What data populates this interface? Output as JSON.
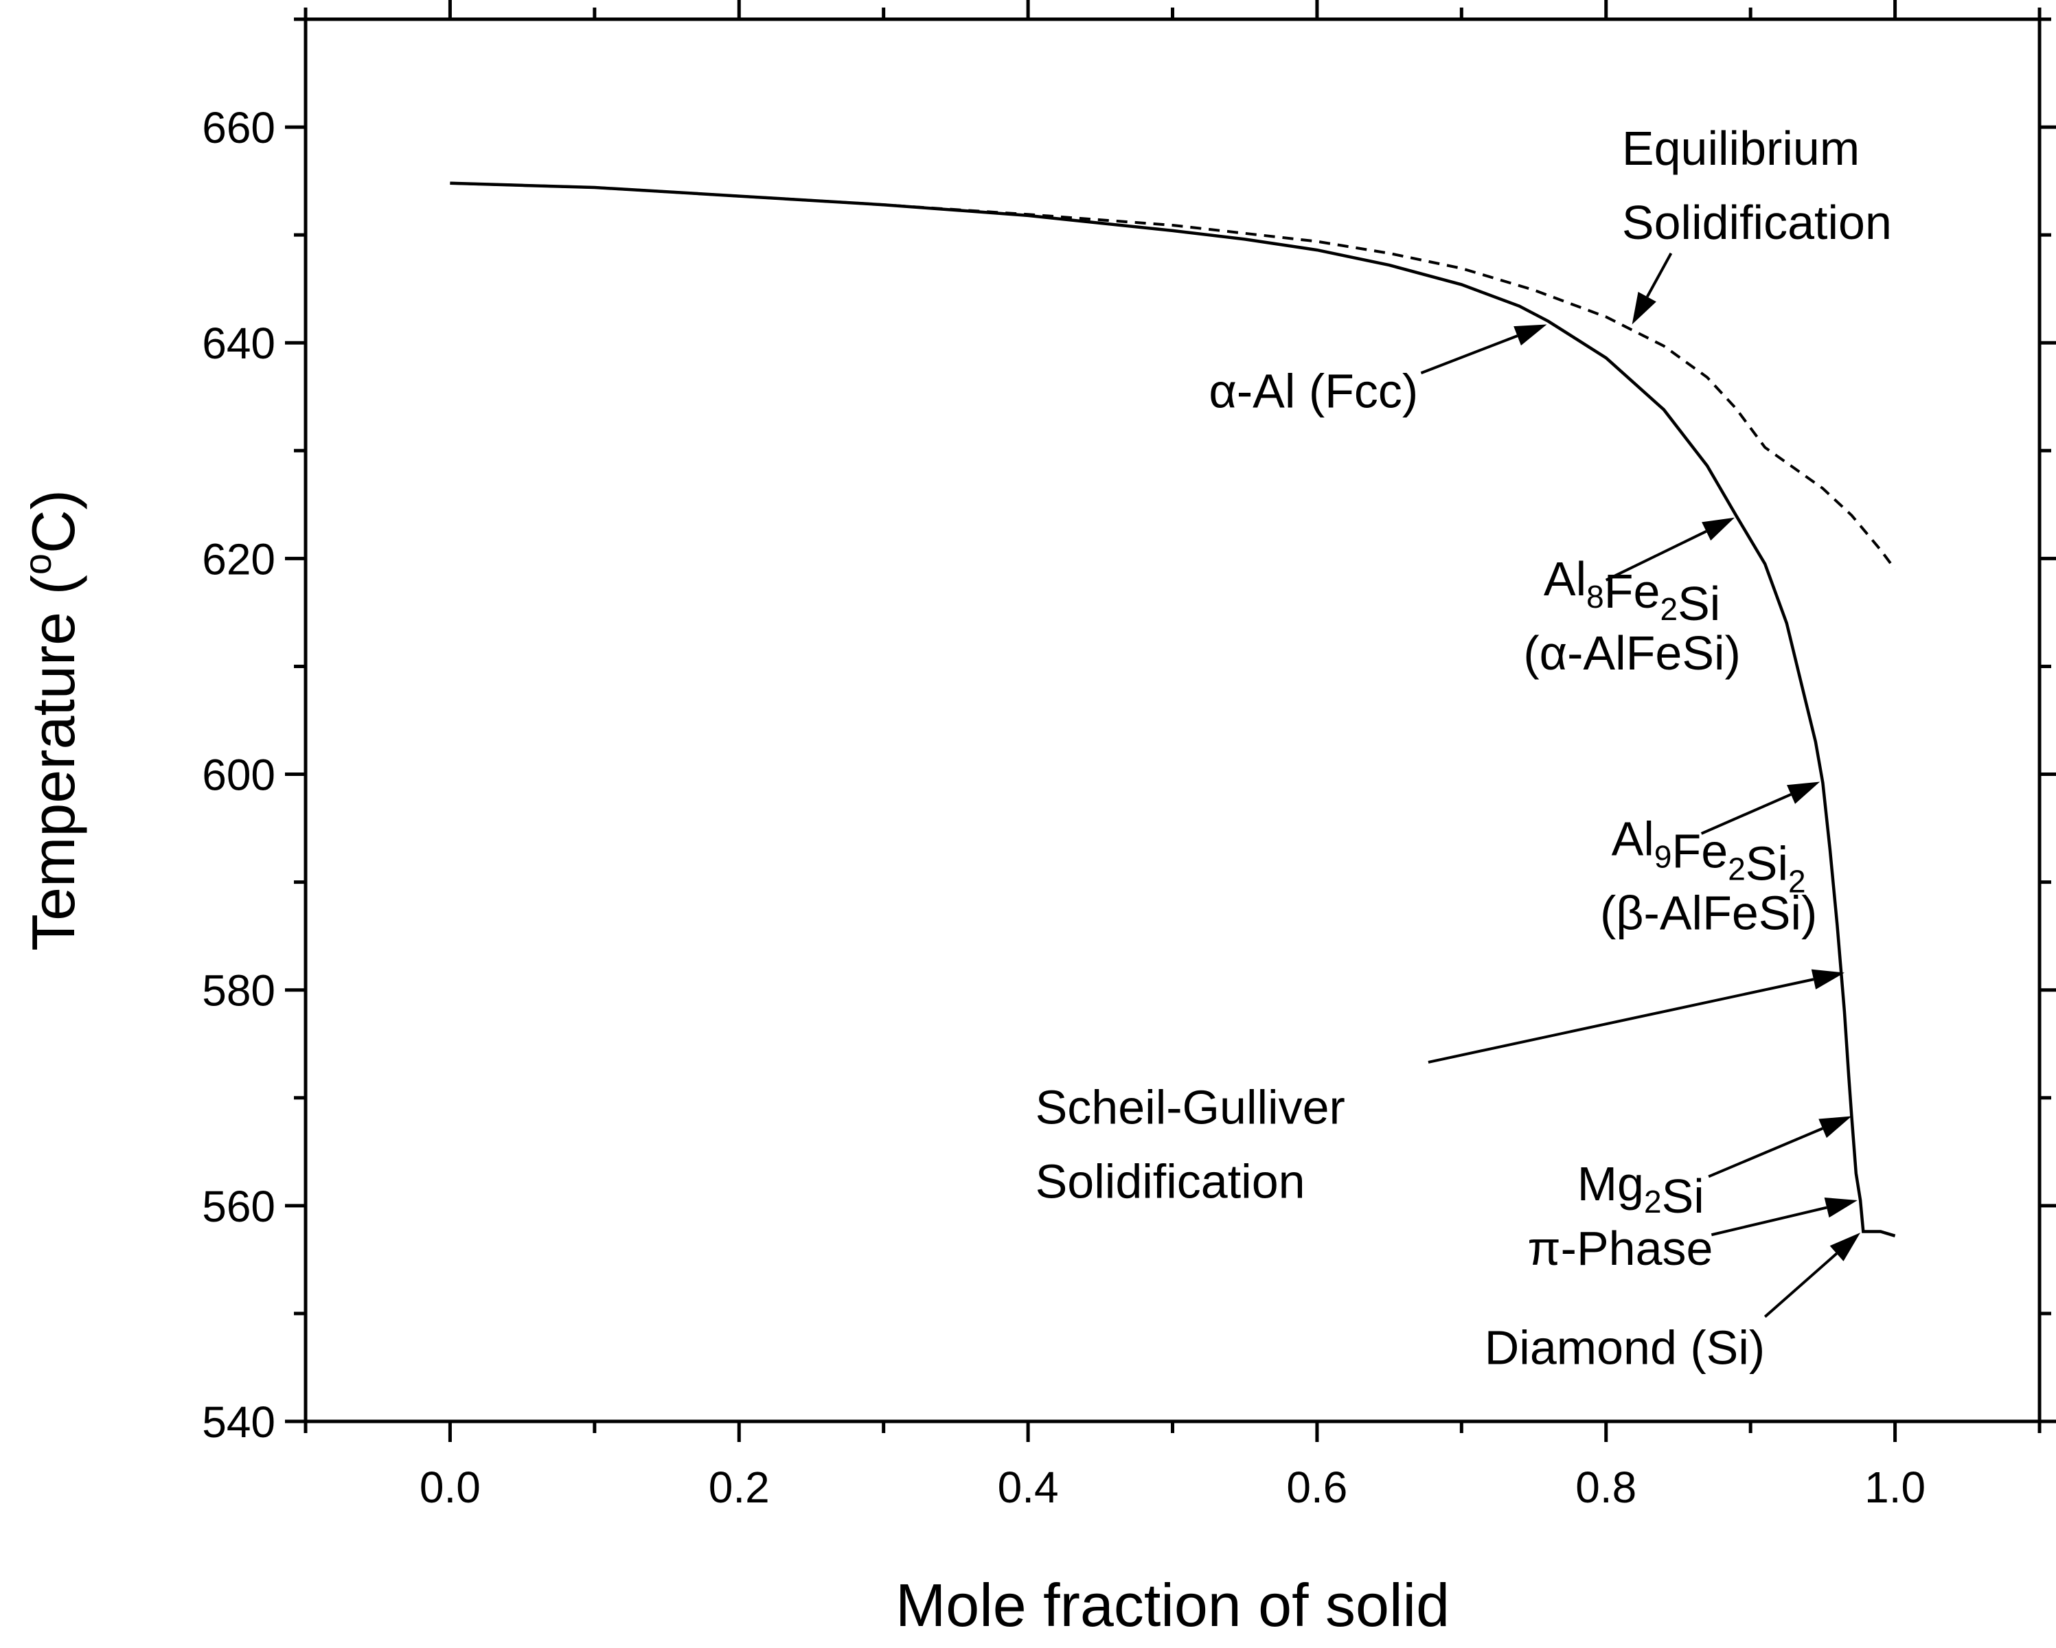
{
  "chart_data": {
    "type": "line",
    "xlabel": "Mole fraction of solid",
    "ylabel_main": "Temperature (",
    "ylabel_sup": "o",
    "ylabel_end": "C)",
    "xlim": [
      -0.1,
      1.1
    ],
    "ylim": [
      540,
      670
    ],
    "x_ticks": [
      0.0,
      0.2,
      0.4,
      0.6,
      0.8,
      1.0
    ],
    "x_tick_labels": [
      "0.0",
      "0.2",
      "0.4",
      "0.6",
      "0.8",
      "1.0"
    ],
    "x_minor_step": 0.1,
    "y_ticks": [
      540,
      560,
      580,
      600,
      620,
      640,
      660
    ],
    "y_tick_labels": [
      "540",
      "560",
      "580",
      "600",
      "620",
      "640",
      "660"
    ],
    "y_minor_step": 10,
    "grid": false,
    "series": [
      {
        "key": "scheil",
        "style": "solid",
        "x": [
          0.0,
          0.05,
          0.1,
          0.2,
          0.3,
          0.4,
          0.5,
          0.55,
          0.6,
          0.65,
          0.7,
          0.74,
          0.76,
          0.8,
          0.84,
          0.87,
          0.89,
          0.91,
          0.925,
          0.935,
          0.945,
          0.95,
          0.955,
          0.96,
          0.965,
          0.968,
          0.97,
          0.973,
          0.976,
          0.978,
          0.99,
          1.0
        ],
        "y": [
          654.8,
          654.6,
          654.4,
          653.6,
          652.8,
          651.8,
          650.4,
          649.6,
          648.6,
          647.2,
          645.4,
          643.4,
          642.0,
          638.6,
          633.8,
          628.6,
          624.0,
          619.5,
          614.0,
          608.5,
          603.0,
          599.2,
          593.0,
          586.0,
          578.0,
          572.0,
          568.2,
          563.0,
          560.5,
          557.6,
          557.6,
          557.2
        ]
      },
      {
        "key": "equilibrium",
        "style": "dashed",
        "x": [
          0.0,
          0.1,
          0.2,
          0.3,
          0.4,
          0.5,
          0.6,
          0.65,
          0.7,
          0.75,
          0.8,
          0.84,
          0.87,
          0.89,
          0.91,
          0.93,
          0.95,
          0.97,
          0.99,
          1.0
        ],
        "y": [
          654.8,
          654.4,
          653.6,
          652.8,
          651.9,
          650.9,
          649.4,
          648.3,
          646.9,
          644.9,
          642.4,
          639.7,
          636.8,
          633.9,
          630.3,
          628.4,
          626.5,
          624.0,
          620.8,
          619.0
        ]
      }
    ],
    "annotations": [
      {
        "key": "equilibrium",
        "lines": [
          [
            {
              "t": "Equilibrium"
            }
          ],
          [
            {
              "t": "Solidification"
            }
          ]
        ],
        "text_pos": [
          0.811,
          656.5
        ],
        "anchor": "start",
        "arrow_from": [
          0.845,
          648.3
        ],
        "arrow_to": [
          0.818,
          641.7
        ]
      },
      {
        "key": "alpha-al",
        "lines": [
          [
            {
              "t": "α-Al (Fcc)"
            }
          ]
        ],
        "text_pos": [
          0.67,
          634.0
        ],
        "anchor": "end",
        "arrow_from": [
          0.672,
          637.2
        ],
        "arrow_to": [
          0.759,
          641.7
        ]
      },
      {
        "key": "al8fe2si",
        "lines": [
          [
            {
              "t": "Al"
            },
            {
              "t": "8",
              "sub": true
            },
            {
              "t": "Fe"
            },
            {
              "t": "2",
              "sub": true
            },
            {
              "t": "Si"
            }
          ],
          [
            {
              "t": "(α-AlFeSi)"
            }
          ]
        ],
        "text_pos": [
          0.818,
          616.6
        ],
        "anchor": "middle",
        "arrow_from": [
          0.8,
          618.0
        ],
        "arrow_to": [
          0.889,
          623.8
        ]
      },
      {
        "key": "al9fe2si2",
        "lines": [
          [
            {
              "t": "Al"
            },
            {
              "t": "9",
              "sub": true
            },
            {
              "t": "Fe"
            },
            {
              "t": "2",
              "sub": true
            },
            {
              "t": "Si"
            },
            {
              "t": "2",
              "sub": true
            }
          ],
          [
            {
              "t": "(β-AlFeSi)"
            }
          ]
        ],
        "text_pos": [
          0.871,
          592.5
        ],
        "anchor": "middle",
        "arrow_from": [
          0.866,
          594.5
        ],
        "arrow_to": [
          0.948,
          599.3
        ]
      },
      {
        "key": "scheil",
        "lines": [
          [
            {
              "t": "Scheil-Gulliver"
            }
          ],
          [
            {
              "t": "Solidification"
            }
          ]
        ],
        "text_pos": [
          0.405,
          567.6
        ],
        "anchor": "start",
        "arrow_from": [
          0.677,
          573.3
        ],
        "arrow_to": [
          0.965,
          581.6
        ]
      },
      {
        "key": "mg2si",
        "lines": [
          [
            {
              "t": "Mg"
            },
            {
              "t": "2",
              "sub": true
            },
            {
              "t": "Si"
            }
          ]
        ],
        "text_pos": [
          0.868,
          560.5
        ],
        "anchor": "end",
        "arrow_from": [
          0.871,
          562.7
        ],
        "arrow_to": [
          0.97,
          568.3
        ]
      },
      {
        "key": "pi-phase",
        "lines": [
          [
            {
              "t": "π-Phase"
            }
          ]
        ],
        "text_pos": [
          0.874,
          554.5
        ],
        "anchor": "end",
        "arrow_from": [
          0.873,
          557.3
        ],
        "arrow_to": [
          0.974,
          560.5
        ]
      },
      {
        "key": "diamond",
        "lines": [
          [
            {
              "t": "Diamond (Si)"
            }
          ]
        ],
        "text_pos": [
          0.91,
          545.3
        ],
        "anchor": "end",
        "arrow_from": [
          0.91,
          549.7
        ],
        "arrow_to": [
          0.976,
          557.5
        ]
      }
    ]
  }
}
